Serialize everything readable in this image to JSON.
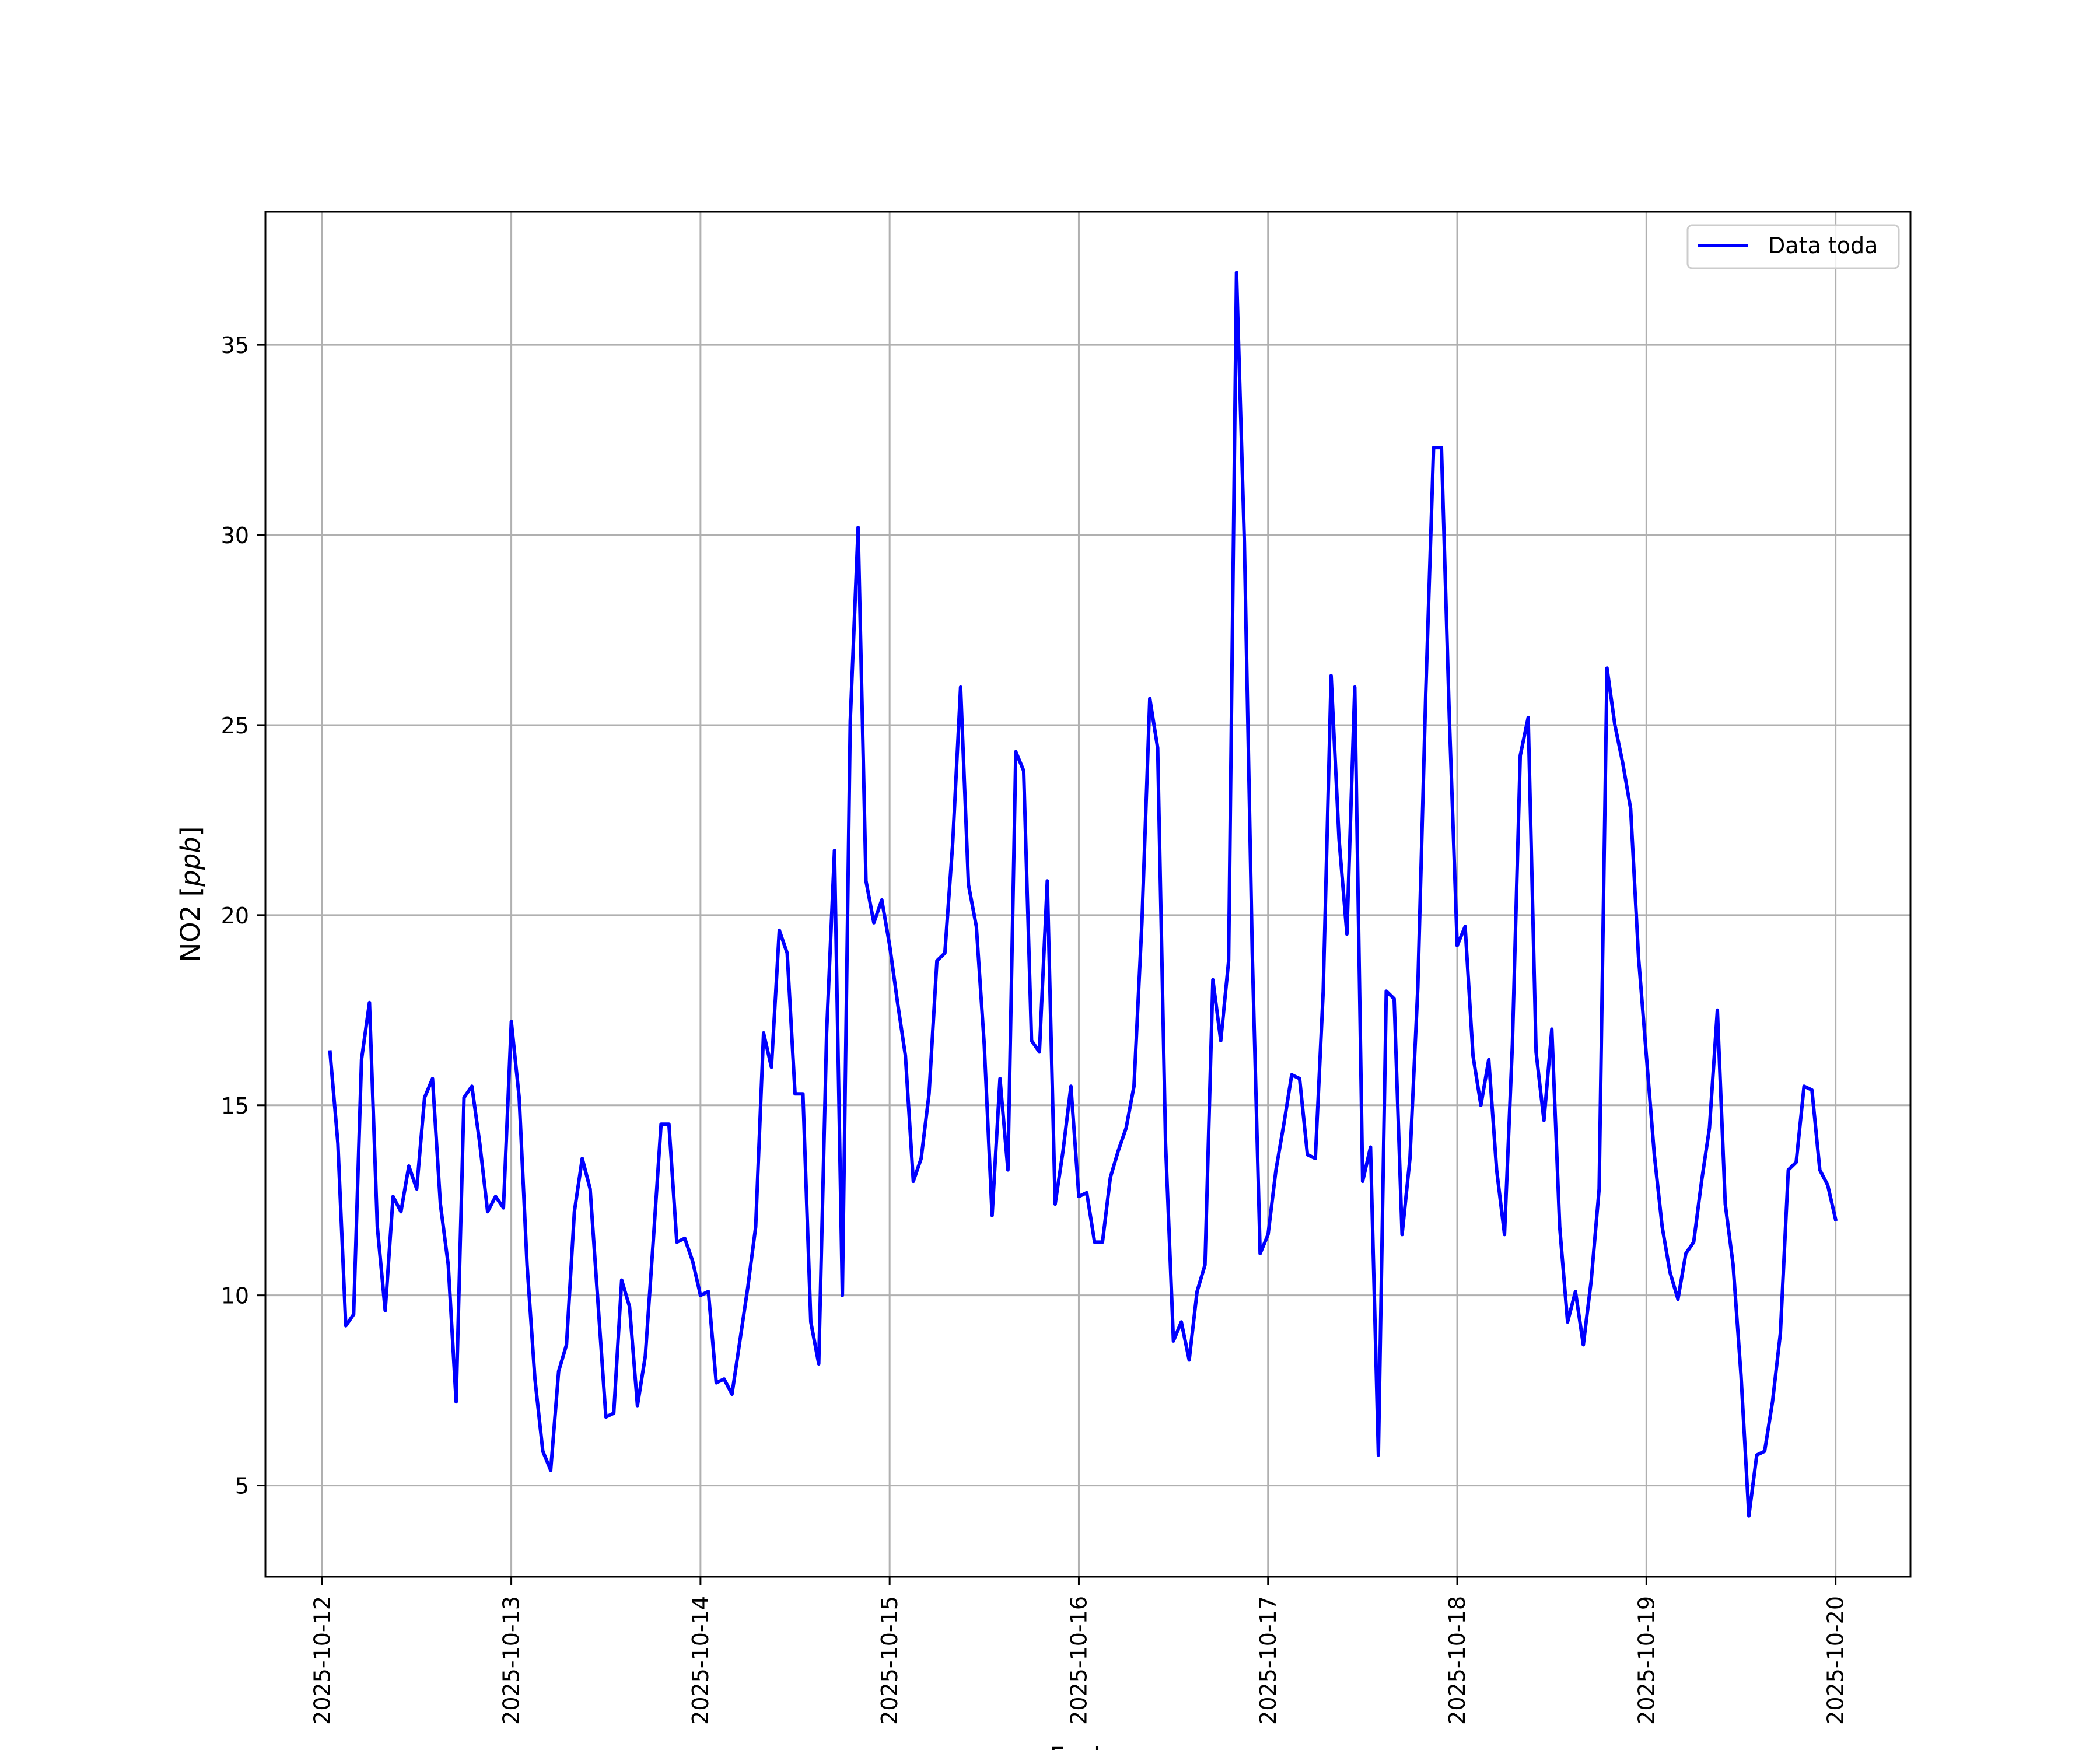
{
  "chart_data": {
    "type": "line",
    "xlabel": "Fecha",
    "ylabel": "NO2 [ppb]",
    "ylabel_main": "NO2 [",
    "ylabel_unit": "ppb",
    "ylabel_end": "]",
    "x_tick_labels": [
      "2025-10-12",
      "2025-10-13",
      "2025-10-14",
      "2025-10-15",
      "2025-10-16",
      "2025-10-17",
      "2025-10-18",
      "2025-10-19",
      "2025-10-20"
    ],
    "y_ticks": [
      5,
      10,
      15,
      20,
      25,
      30,
      35
    ],
    "xlim": [
      "2025-10-11T16:48",
      "2025-10-20T09:30"
    ],
    "ylim": [
      2.6,
      38.5
    ],
    "grid": true,
    "legend": "top-right",
    "series": [
      {
        "name": "Data toda",
        "color": "#0000ff",
        "x": [
          "2025-10-12T01:00",
          "2025-10-12T02:00",
          "2025-10-12T03:00",
          "2025-10-12T04:00",
          "2025-10-12T05:00",
          "2025-10-12T06:00",
          "2025-10-12T07:00",
          "2025-10-12T08:00",
          "2025-10-12T09:00",
          "2025-10-12T10:00",
          "2025-10-12T11:00",
          "2025-10-12T12:00",
          "2025-10-12T13:00",
          "2025-10-12T14:00",
          "2025-10-12T15:00",
          "2025-10-12T16:00",
          "2025-10-12T17:00",
          "2025-10-12T18:00",
          "2025-10-12T19:00",
          "2025-10-12T20:00",
          "2025-10-12T21:00",
          "2025-10-12T22:00",
          "2025-10-12T23:00",
          "2025-10-13T00:00",
          "2025-10-13T01:00",
          "2025-10-13T02:00",
          "2025-10-13T03:00",
          "2025-10-13T04:00",
          "2025-10-13T05:00",
          "2025-10-13T06:00",
          "2025-10-13T07:00",
          "2025-10-13T08:00",
          "2025-10-13T09:00",
          "2025-10-13T10:00",
          "2025-10-13T11:00",
          "2025-10-13T12:00",
          "2025-10-13T13:00",
          "2025-10-13T14:00",
          "2025-10-13T15:00",
          "2025-10-13T16:00",
          "2025-10-13T17:00",
          "2025-10-13T18:00",
          "2025-10-13T19:00",
          "2025-10-13T20:00",
          "2025-10-13T21:00",
          "2025-10-13T22:00",
          "2025-10-13T23:00",
          "2025-10-14T00:00",
          "2025-10-14T01:00",
          "2025-10-14T02:00",
          "2025-10-14T03:00",
          "2025-10-14T04:00",
          "2025-10-14T05:00",
          "2025-10-14T06:00",
          "2025-10-14T07:00",
          "2025-10-14T08:00",
          "2025-10-14T09:00",
          "2025-10-14T10:00",
          "2025-10-14T11:00",
          "2025-10-14T12:00",
          "2025-10-14T13:00",
          "2025-10-14T14:00",
          "2025-10-14T15:00",
          "2025-10-14T16:00",
          "2025-10-14T17:00",
          "2025-10-14T18:00",
          "2025-10-14T19:00",
          "2025-10-14T20:00",
          "2025-10-14T21:00",
          "2025-10-14T22:00",
          "2025-10-14T23:00",
          "2025-10-15T00:00",
          "2025-10-15T01:00",
          "2025-10-15T02:00",
          "2025-10-15T03:00",
          "2025-10-15T04:00",
          "2025-10-15T05:00",
          "2025-10-15T06:00",
          "2025-10-15T07:00",
          "2025-10-15T08:00",
          "2025-10-15T09:00",
          "2025-10-15T10:00",
          "2025-10-15T11:00",
          "2025-10-15T12:00",
          "2025-10-15T13:00",
          "2025-10-15T14:00",
          "2025-10-15T15:00",
          "2025-10-15T16:00",
          "2025-10-15T17:00",
          "2025-10-15T18:00",
          "2025-10-15T19:00",
          "2025-10-15T20:00",
          "2025-10-15T21:00",
          "2025-10-15T22:00",
          "2025-10-15T23:00",
          "2025-10-16T00:00",
          "2025-10-16T01:00",
          "2025-10-16T02:00",
          "2025-10-16T03:00",
          "2025-10-16T04:00",
          "2025-10-16T05:00",
          "2025-10-16T06:00",
          "2025-10-16T07:00",
          "2025-10-16T08:00",
          "2025-10-16T09:00",
          "2025-10-16T10:00",
          "2025-10-16T11:00",
          "2025-10-16T12:00",
          "2025-10-16T13:00",
          "2025-10-16T14:00",
          "2025-10-16T15:00",
          "2025-10-16T16:00",
          "2025-10-16T17:00",
          "2025-10-16T18:00",
          "2025-10-16T19:00",
          "2025-10-16T20:00",
          "2025-10-16T21:00",
          "2025-10-16T22:00",
          "2025-10-16T23:00",
          "2025-10-17T00:00",
          "2025-10-17T01:00",
          "2025-10-17T02:00",
          "2025-10-17T03:00",
          "2025-10-17T04:00",
          "2025-10-17T05:00",
          "2025-10-17T06:00",
          "2025-10-17T07:00",
          "2025-10-17T08:00",
          "2025-10-17T09:00",
          "2025-10-17T10:00",
          "2025-10-17T11:00",
          "2025-10-17T12:00",
          "2025-10-17T13:00",
          "2025-10-17T14:00",
          "2025-10-17T15:00",
          "2025-10-17T16:00",
          "2025-10-17T17:00",
          "2025-10-17T18:00",
          "2025-10-17T19:00",
          "2025-10-17T20:00",
          "2025-10-17T21:00",
          "2025-10-17T22:00",
          "2025-10-17T23:00",
          "2025-10-18T00:00",
          "2025-10-18T01:00",
          "2025-10-18T02:00",
          "2025-10-18T03:00",
          "2025-10-18T04:00",
          "2025-10-18T05:00",
          "2025-10-18T06:00",
          "2025-10-18T07:00",
          "2025-10-18T08:00",
          "2025-10-18T09:00",
          "2025-10-18T10:00",
          "2025-10-18T11:00",
          "2025-10-18T12:00",
          "2025-10-18T13:00",
          "2025-10-18T14:00",
          "2025-10-18T15:00",
          "2025-10-18T16:00",
          "2025-10-18T17:00",
          "2025-10-18T18:00",
          "2025-10-18T19:00",
          "2025-10-18T20:00",
          "2025-10-18T21:00",
          "2025-10-18T22:00",
          "2025-10-18T23:00",
          "2025-10-19T00:00",
          "2025-10-19T01:00",
          "2025-10-19T02:00",
          "2025-10-19T03:00",
          "2025-10-19T04:00",
          "2025-10-19T05:00",
          "2025-10-19T06:00",
          "2025-10-19T07:00",
          "2025-10-19T08:00",
          "2025-10-19T09:00",
          "2025-10-19T10:00",
          "2025-10-19T11:00",
          "2025-10-19T12:00",
          "2025-10-19T13:00",
          "2025-10-19T14:00",
          "2025-10-19T15:00",
          "2025-10-19T16:00",
          "2025-10-19T17:00",
          "2025-10-19T18:00",
          "2025-10-19T19:00",
          "2025-10-19T20:00",
          "2025-10-19T21:00",
          "2025-10-19T22:00",
          "2025-10-19T23:00",
          "2025-10-20T00:00"
        ],
        "values": [
          16.4,
          14.0,
          9.2,
          9.5,
          16.2,
          17.7,
          11.8,
          9.6,
          12.6,
          12.2,
          13.4,
          12.8,
          15.2,
          15.7,
          12.4,
          10.8,
          7.2,
          15.2,
          15.5,
          14.0,
          12.2,
          12.6,
          12.3,
          17.2,
          15.2,
          10.8,
          7.8,
          5.9,
          5.4,
          8.0,
          8.7,
          12.2,
          13.6,
          12.8,
          9.8,
          6.8,
          6.9,
          10.4,
          9.7,
          7.1,
          8.4,
          11.4,
          14.5,
          14.5,
          11.4,
          11.5,
          10.9,
          10.0,
          10.1,
          7.7,
          7.8,
          7.4,
          8.8,
          10.2,
          11.8,
          16.9,
          16.0,
          19.6,
          19.0,
          15.3,
          15.3,
          9.3,
          8.2,
          16.9,
          21.7,
          10.0,
          25.1,
          30.2,
          20.9,
          19.8,
          20.4,
          19.2,
          17.7,
          16.3,
          13.0,
          13.6,
          15.3,
          18.8,
          19.0,
          21.9,
          26.0,
          20.8,
          19.7,
          16.6,
          12.1,
          15.7,
          13.3,
          24.3,
          23.8,
          16.7,
          16.4,
          20.9,
          12.4,
          13.8,
          15.5,
          12.6,
          12.7,
          11.4,
          11.4,
          13.1,
          13.8,
          14.4,
          15.5,
          19.8,
          25.7,
          24.4,
          14.0,
          8.8,
          9.3,
          8.3,
          10.1,
          10.8,
          18.3,
          16.7,
          18.8,
          36.9,
          29.8,
          19.0,
          11.1,
          11.6,
          13.3,
          14.5,
          15.8,
          15.7,
          13.7,
          13.6,
          18.0,
          26.3,
          22.0,
          19.5,
          26.0,
          13.0,
          13.9,
          5.8,
          18.0,
          17.8,
          11.6,
          13.6,
          18.1,
          25.8,
          32.3,
          32.3,
          25.2,
          19.2,
          19.7,
          16.3,
          15.0,
          16.2,
          13.3,
          11.6,
          16.6,
          24.2,
          25.2,
          16.4,
          14.6,
          17.0,
          11.8,
          9.3,
          10.1,
          8.7,
          10.4,
          12.8,
          26.5,
          25.0,
          24.0,
          22.8,
          18.9,
          16.3,
          13.7,
          11.8,
          10.6,
          9.9,
          11.1,
          11.4,
          13.0,
          14.4,
          17.5,
          12.4,
          10.8,
          7.9,
          4.2,
          5.8,
          5.9,
          7.2,
          9.0,
          13.3,
          13.5,
          15.5,
          15.4,
          13.3,
          12.9,
          12.0
        ]
      }
    ]
  }
}
